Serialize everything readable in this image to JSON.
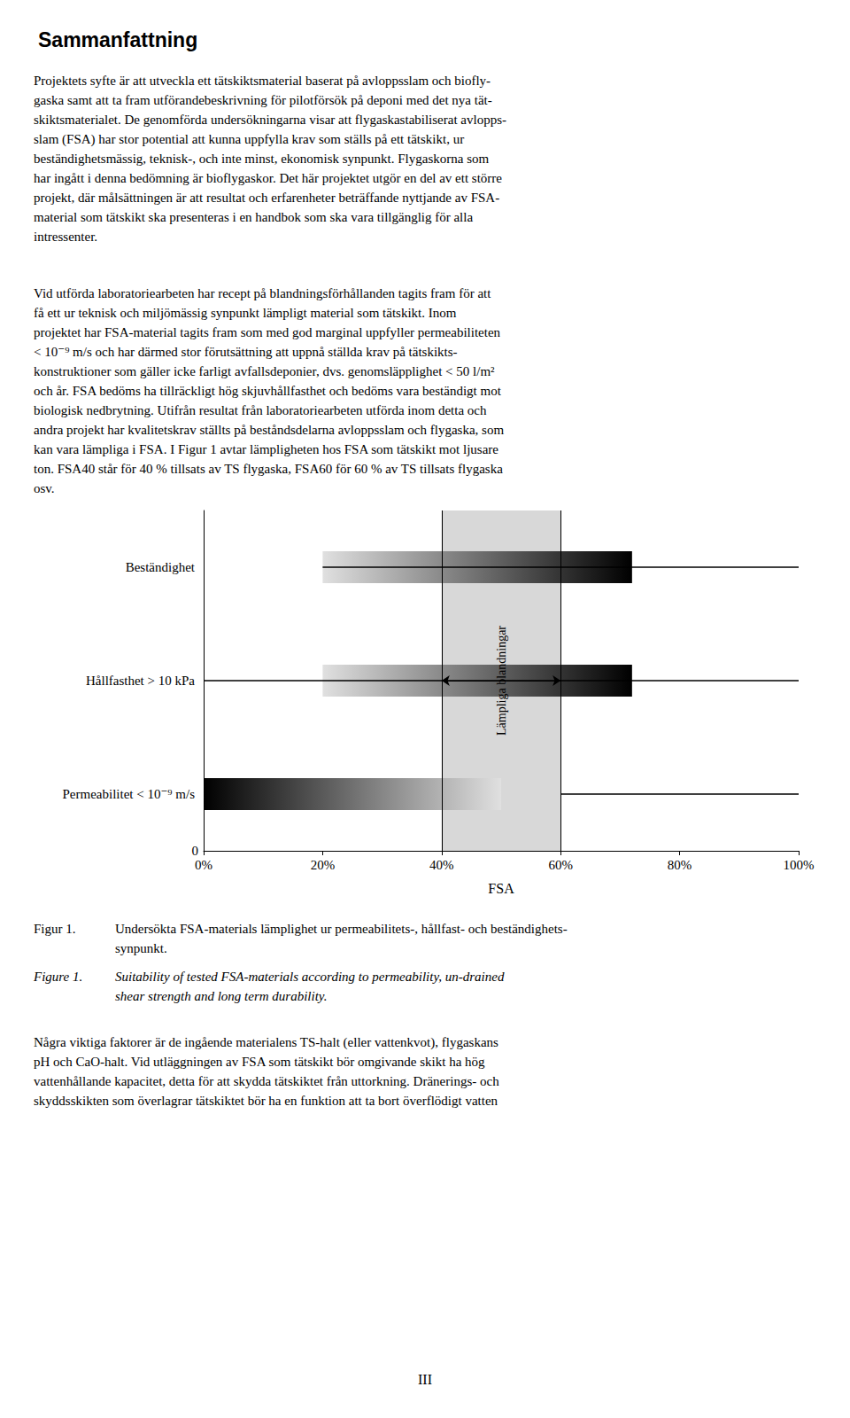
{
  "chart_data": {
    "type": "range_bar",
    "orientation": "horizontal",
    "title": "Sammanfattning",
    "xlabel": "FSA",
    "xlim": [
      0.0,
      1.0
    ],
    "xticks": [
      {
        "value": 0.0,
        "label": "0%"
      },
      {
        "value": 0.2,
        "label": "20%"
      },
      {
        "value": 0.4,
        "label": "40%"
      },
      {
        "value": 0.6,
        "label": "60%"
      },
      {
        "value": 0.8,
        "label": "80%"
      },
      {
        "value": 1.0,
        "label": "100%"
      }
    ],
    "grid": false,
    "categories": [
      "Beständighet",
      "Hållfasthet > 10 kPa",
      "Permeabilitet < 10⁻⁹ m/s"
    ],
    "rows": [
      {
        "bar": [
          0.2,
          0.72
        ],
        "colors": [
          "#e0e0e0",
          "#000000"
        ],
        "line": [
          0.2,
          1.0
        ],
        "color": "#000000"
      },
      {
        "bar": [
          0.2,
          0.72
        ],
        "colors": [
          "#e0e0e0",
          "#000000"
        ],
        "line": [
          0.0,
          1.0
        ],
        "color": "#000000"
      },
      {
        "bar": [
          0.0,
          0.5
        ],
        "colors": [
          "#000000",
          "#e0e0e0"
        ],
        "line": [
          0.6,
          1.0
        ],
        "color": "#000000"
      }
    ],
    "region": {
      "range": [
        0.4,
        0.6
      ],
      "colors": [
        "#c8c8c8",
        "#000000"
      ],
      "label": "Lämpliga blandningar",
      "arrow": "Hållfasthet > 10 kPa"
    },
    "annotations": [
      "0"
    ],
    "paragraphs": [
      "Projektets syfte är att utveckla ett tätskiktsmaterial baserat på avloppsslam och biofly-\ngaska samt att ta fram utförandebeskrivning för pilotförsök på deponi med det nya tät-\nskiktsmaterialet. De genomförda undersökningarna visar att flygaskastabiliserat avlopps-\nslam (FSA) har stor potential att kunna uppfylla krav som ställs på ett tätskikt, ur\nbeständighetsmässig, teknisk-, och inte minst, ekonomisk synpunkt. Flygaskorna som\nhar ingått i denna bedömning är bioflygaskor. Det här projektet utgör en del av ett större\nprojekt, där målsättningen är att resultat och erfarenheter beträffande nyttjande av FSA-\nmaterial som tätskikt ska presenteras i en handbok som ska vara tillgänglig för alla\nintressenter.",
      "Vid utförda laboratoriearbeten har recept på blandningsförhållanden tagits fram för att\nfå ett ur teknisk och miljömässig synpunkt lämpligt material som tätskikt. Inom\nprojektet har FSA-material tagits fram som med god marginal uppfyller permeabiliteten\n< 10⁻⁹ m/s och har därmed stor förutsättning att uppnå ställda krav på tätskikts-\nkonstruktioner som gäller icke farligt avfallsdeponier, dvs. genomsläpplighet < 50 l/m²\noch år. FSA bedöms ha tillräckligt hög skjuvhållfasthet och bedöms vara beständigt mot\nbiologisk nedbrytning. Utifrån resultat från laboratoriearbeten utförda inom detta och\nandra projekt har kvalitetskrav ställts på beståndsdelarna avloppsslam och flygaska, som\nkan vara lämpliga i FSA. I Figur 1 avtar lämpligheten hos FSA som tätskikt mot ljusare\nton. FSA40 står för 40 % tillsats av TS flygaska, FSA60 för 60 % av TS tillsats flygaska\nosv.",
      "Några viktiga faktorer är de ingående materialens TS-halt (eller vattenkvot), flygaskans\npH och CaO-halt. Vid utläggningen av FSA som tätskikt bör omgivande skikt ha hög\nvattenhållande kapacitet, detta för att skydda tätskiktet från uttorkning. Dränerings- och\nskyddsskikten som överlagrar tätskiktet bör ha en funktion att ta bort överflödigt vatten"
    ],
    "captions": [
      {
        "label": "Figur 1.",
        "text": "Undersökta FSA-materials lämplighet ur permeabilitets-, hållfast- och beständighets-\nsynpunkt."
      },
      {
        "label": "Figure 1.",
        "text": "Suitability of tested FSA-materials according to permeability, un-drained\nshear strength and long term durability."
      }
    ],
    "page_number": "III"
  }
}
